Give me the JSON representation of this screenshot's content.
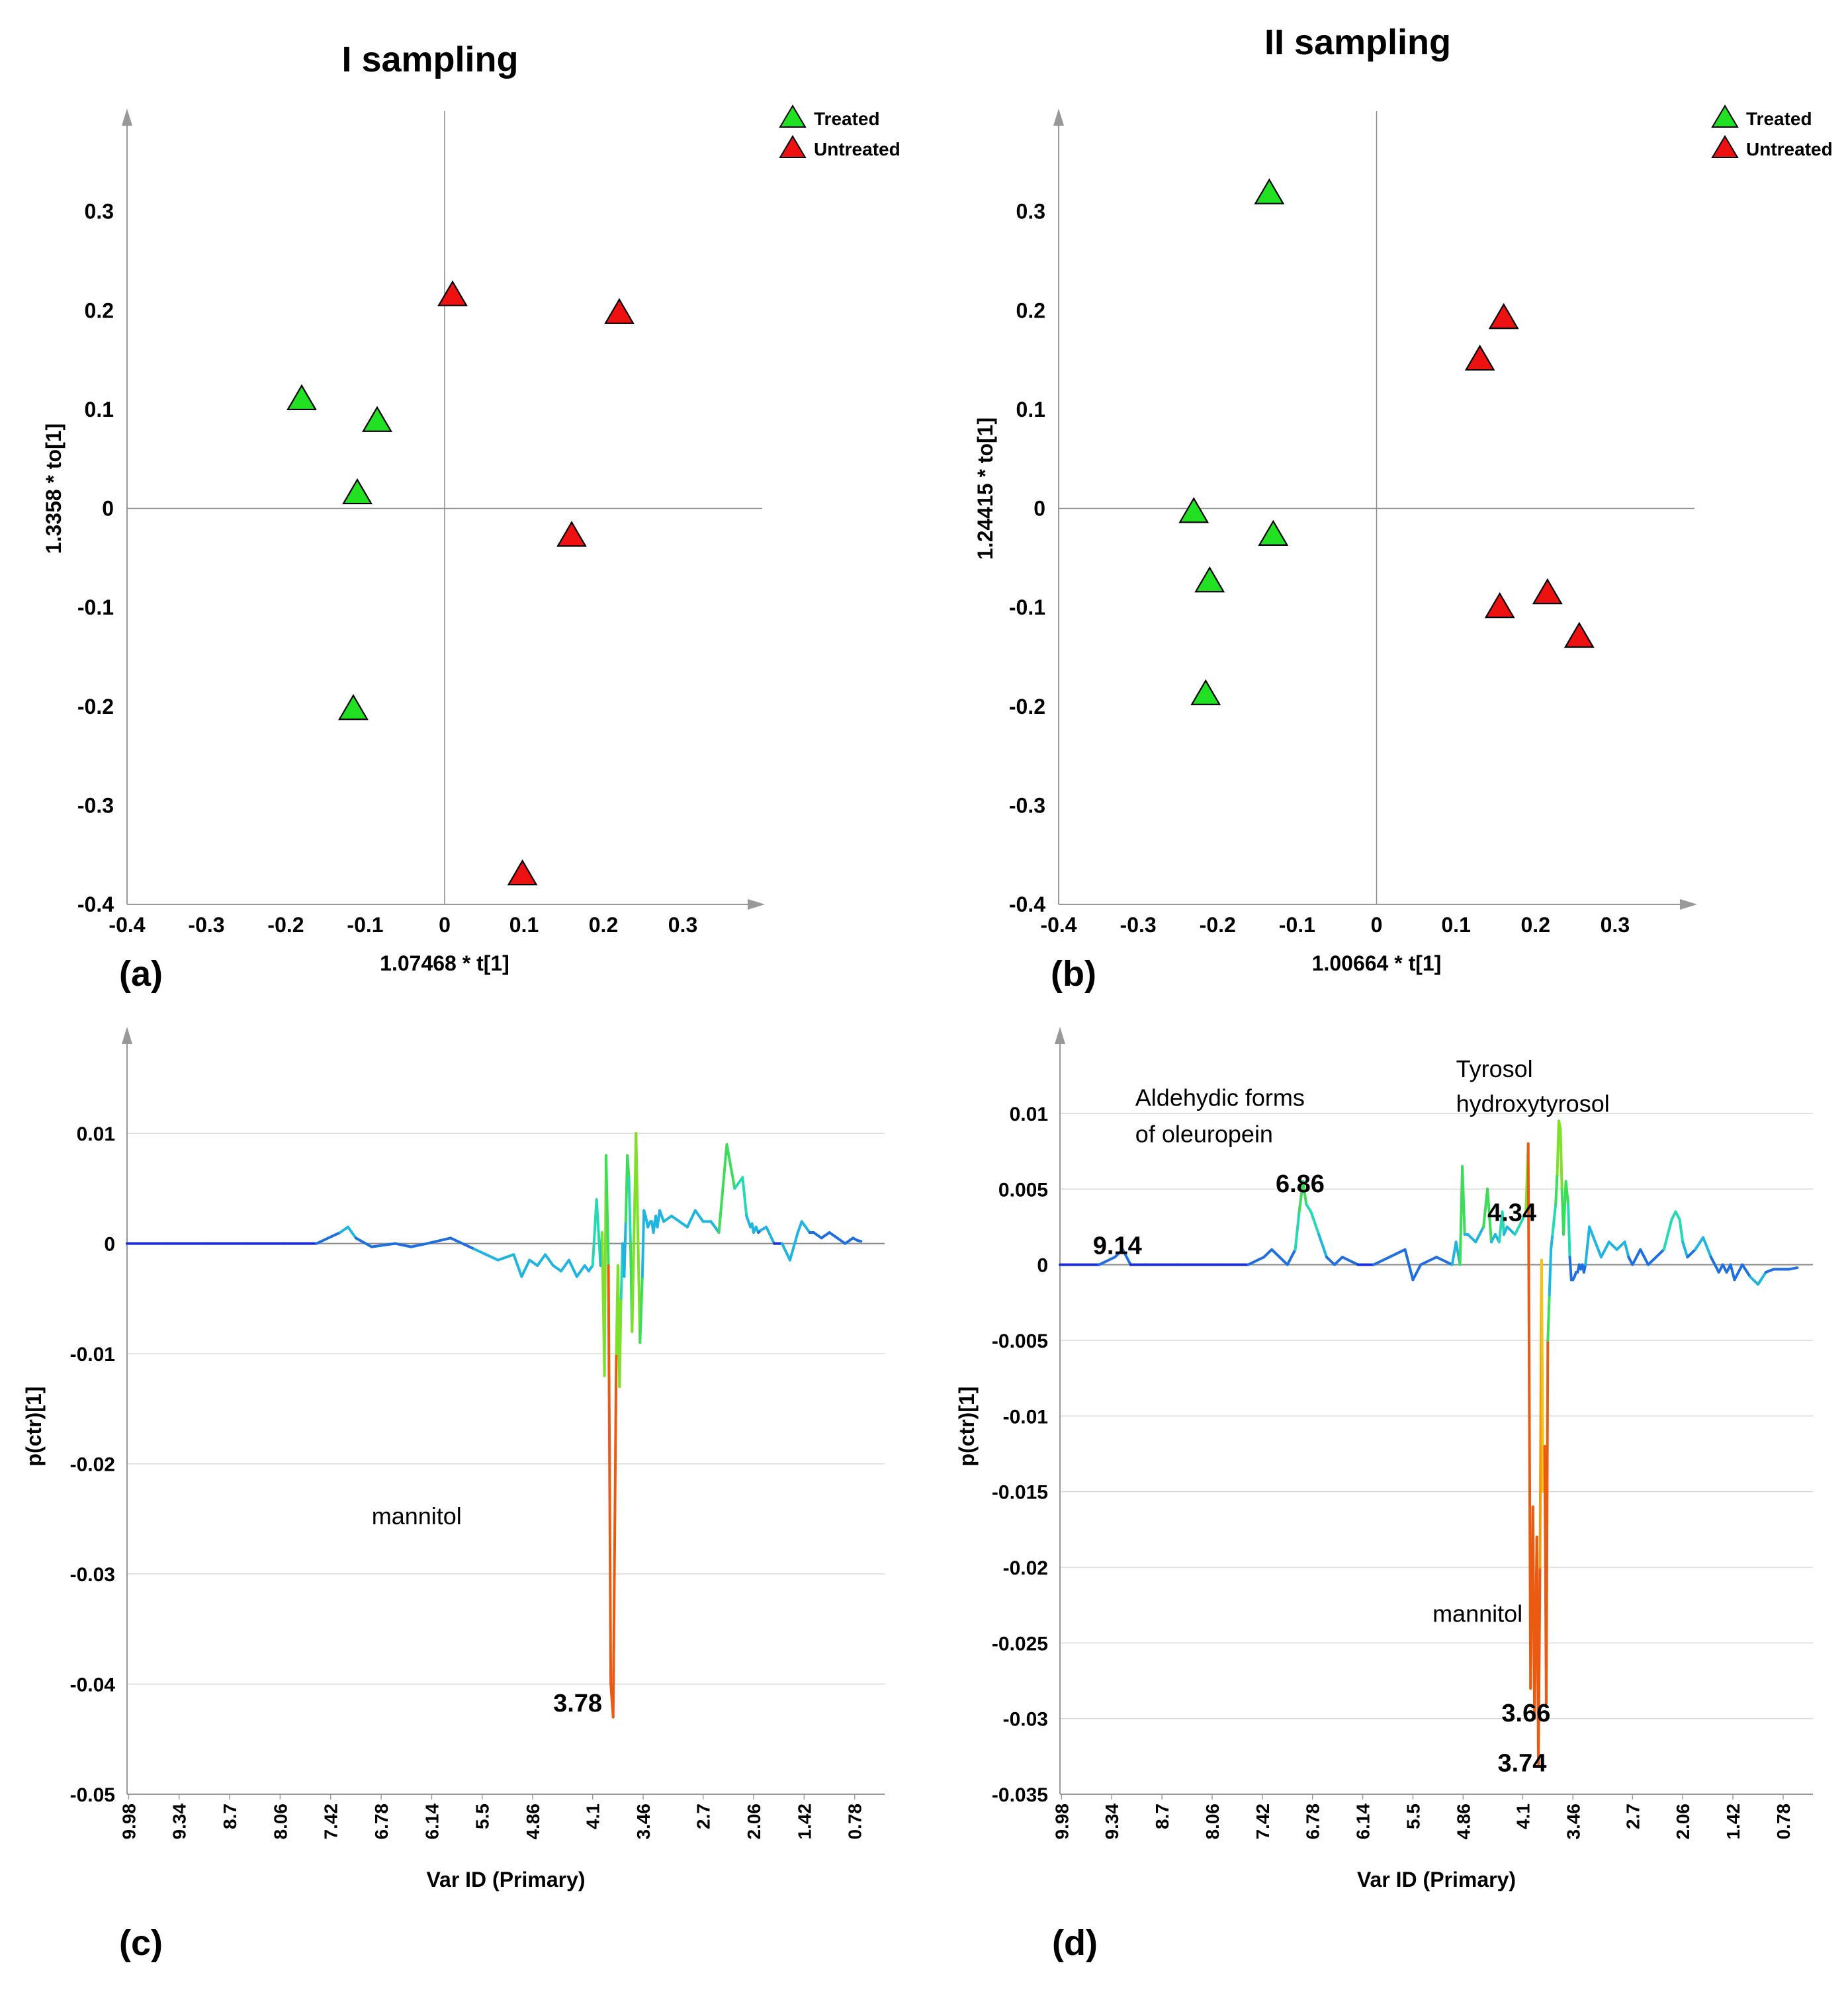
{
  "colors": {
    "treated": "#22e022",
    "untreated": "#ee1111",
    "axis": "#999999",
    "grid": "#d8d8d8",
    "text": "#000000"
  },
  "chart_data": [
    {
      "id": "a",
      "type": "scatter",
      "title": "I sampling",
      "panel_label": "(a)",
      "xlabel": "1.07468 * t[1]",
      "ylabel": "1.3358 * to[1]",
      "xlim": [
        -0.4,
        0.4
      ],
      "ylim": [
        -0.4,
        0.4
      ],
      "xticks": [
        -0.4,
        -0.3,
        -0.2,
        -0.1,
        0,
        0.1,
        0.2,
        0.3
      ],
      "xtick_labels": [
        "-0.4",
        "-0.3",
        "-0.2",
        "-0.1",
        "0",
        "0.1",
        "0.2",
        "0.3"
      ],
      "yticks": [
        0.3,
        0.2,
        0.1,
        0,
        -0.1,
        -0.2,
        -0.3,
        -0.4
      ],
      "ytick_labels": [
        "0.3",
        "0.2",
        "0.1",
        "0",
        "-0.1",
        "-0.2",
        "-0.3",
        "-0.4"
      ],
      "legend": [
        {
          "name": "Treated",
          "color": "#22e022"
        },
        {
          "name": "Untreated",
          "color": "#ee1111"
        }
      ],
      "series": [
        {
          "name": "Treated",
          "color": "#22e022",
          "x": [
            -0.18,
            -0.085,
            -0.11,
            -0.115
          ],
          "y": [
            0.11,
            0.088,
            0.015,
            -0.203
          ]
        },
        {
          "name": "Untreated",
          "color": "#ee1111",
          "x": [
            0.01,
            0.22,
            0.16,
            0.098
          ],
          "y": [
            0.215,
            0.197,
            -0.028,
            -0.37
          ]
        }
      ]
    },
    {
      "id": "b",
      "type": "scatter",
      "title": "II sampling",
      "panel_label": "(b)",
      "xlabel": "1.00664 * t[1]",
      "ylabel": "1.24415 * to[1]",
      "xlim": [
        -0.4,
        0.4
      ],
      "ylim": [
        -0.4,
        0.4
      ],
      "xticks": [
        -0.4,
        -0.3,
        -0.2,
        -0.1,
        0,
        0.1,
        0.2,
        0.3
      ],
      "xtick_labels": [
        "-0.4",
        "-0.3",
        "-0.2",
        "-0.1",
        "0",
        "0.1",
        "0.2",
        "0.3"
      ],
      "yticks": [
        0.3,
        0.2,
        0.1,
        0,
        -0.1,
        -0.2,
        -0.3,
        -0.4
      ],
      "ytick_labels": [
        "0.3",
        "0.2",
        "0.1",
        "0",
        "-0.1",
        "-0.2",
        "-0.3",
        "-0.4"
      ],
      "legend": [
        {
          "name": "Treated",
          "color": "#22e022"
        },
        {
          "name": "Untreated",
          "color": "#ee1111"
        }
      ],
      "series": [
        {
          "name": "Treated",
          "color": "#22e022",
          "x": [
            -0.135,
            -0.23,
            -0.13,
            -0.21,
            -0.215
          ],
          "y": [
            0.318,
            -0.004,
            -0.027,
            -0.074,
            -0.188
          ]
        },
        {
          "name": "Untreated",
          "color": "#ee1111",
          "x": [
            0.16,
            0.13,
            0.215,
            0.155,
            0.255
          ],
          "y": [
            0.192,
            0.15,
            -0.086,
            -0.1,
            -0.13
          ]
        }
      ]
    },
    {
      "id": "c",
      "type": "line",
      "panel_label": "(c)",
      "xlabel": "Var ID (Primary)",
      "ylabel": "p(ctr)[1]",
      "xlim": [
        10.0,
        0.4
      ],
      "ylim": [
        -0.05,
        0.018
      ],
      "xticks": [
        9.98,
        9.34,
        8.7,
        8.06,
        7.42,
        6.78,
        6.14,
        5.5,
        4.86,
        4.1,
        3.46,
        2.7,
        2.06,
        1.42,
        0.78
      ],
      "xtick_labels": [
        "9.98",
        "9.34",
        "8.7",
        "8.06",
        "7.42",
        "6.78",
        "6.14",
        "5.5",
        "4.86",
        "4.1",
        "3.46",
        "2.7",
        "2.06",
        "1.42",
        "0.78"
      ],
      "yticks": [
        0.01,
        0,
        -0.01,
        -0.02,
        -0.03,
        -0.04,
        -0.05
      ],
      "ytick_labels": [
        "0.01",
        "0",
        "-0.01",
        "-0.02",
        "-0.03",
        "-0.04",
        "-0.05"
      ],
      "x": [
        10.0,
        9.5,
        9.0,
        8.5,
        8.0,
        7.6,
        7.3,
        7.2,
        7.1,
        6.9,
        6.6,
        6.4,
        6.2,
        5.9,
        5.6,
        5.3,
        5.1,
        5.0,
        4.9,
        4.8,
        4.7,
        4.6,
        4.5,
        4.4,
        4.3,
        4.2,
        4.15,
        4.1,
        4.05,
        4.0,
        3.98,
        3.95,
        3.93,
        3.9,
        3.87,
        3.84,
        3.8,
        3.78,
        3.76,
        3.74,
        3.72,
        3.7,
        3.68,
        3.66,
        3.64,
        3.62,
        3.6,
        3.55,
        3.5,
        3.47,
        3.45,
        3.43,
        3.4,
        3.37,
        3.35,
        3.33,
        3.3,
        3.28,
        3.25,
        3.2,
        3.1,
        3.0,
        2.9,
        2.8,
        2.7,
        2.6,
        2.5,
        2.4,
        2.3,
        2.2,
        2.15,
        2.1,
        2.08,
        2.06,
        2.03,
        2.0,
        1.97,
        1.9,
        1.8,
        1.7,
        1.6,
        1.5,
        1.45,
        1.4,
        1.35,
        1.3,
        1.2,
        1.1,
        1.0,
        0.9,
        0.8,
        0.75,
        0.7
      ],
      "values": [
        0.0,
        0.0,
        0.0,
        0.0,
        0.0,
        0.0,
        0.001,
        0.0015,
        0.0005,
        -0.0003,
        0.0,
        -0.0003,
        0.0,
        0.0005,
        -0.0005,
        -0.0015,
        -0.001,
        -0.003,
        -0.0015,
        -0.002,
        -0.001,
        -0.002,
        -0.0025,
        -0.0015,
        -0.003,
        -0.002,
        -0.0025,
        -0.002,
        0.004,
        -0.002,
        0.001,
        -0.012,
        0.008,
        -0.002,
        -0.04,
        -0.043,
        -0.01,
        -0.002,
        -0.013,
        -0.005,
        0.0,
        -0.003,
        0.002,
        0.008,
        0.006,
        0.0,
        -0.008,
        0.01,
        -0.009,
        -0.003,
        0.003,
        0.0025,
        0.0015,
        0.002,
        0.002,
        0.001,
        0.0025,
        0.0015,
        0.003,
        0.002,
        0.0025,
        0.002,
        0.0015,
        0.003,
        0.002,
        0.002,
        0.001,
        0.009,
        0.005,
        0.006,
        0.0025,
        0.0015,
        0.0018,
        0.001,
        0.0015,
        0.001,
        0.0012,
        0.0015,
        0.0,
        0.0,
        -0.0015,
        0.001,
        0.002,
        0.0015,
        0.001,
        0.001,
        0.0005,
        0.001,
        0.0005,
        0.0,
        0.0005,
        0.0003,
        0.0002
      ],
      "annotations": [
        {
          "text": "mannitol",
          "x": 6.9,
          "y": -0.0255,
          "bold": false
        },
        {
          "text": "3.78",
          "x": 4.6,
          "y": -0.0425,
          "bold": true
        }
      ]
    },
    {
      "id": "d",
      "type": "line",
      "panel_label": "(d)",
      "xlabel": "Var ID (Primary)",
      "ylabel": "p(ctr)[1]",
      "xlim": [
        10.0,
        0.4
      ],
      "ylim": [
        -0.035,
        0.0145
      ],
      "xticks": [
        9.98,
        9.34,
        8.7,
        8.06,
        7.42,
        6.78,
        6.14,
        5.5,
        4.86,
        4.1,
        3.46,
        2.7,
        2.06,
        1.42,
        0.78
      ],
      "xtick_labels": [
        "9.98",
        "9.34",
        "8.7",
        "8.06",
        "7.42",
        "6.78",
        "6.14",
        "5.5",
        "4.86",
        "4.1",
        "3.46",
        "2.7",
        "2.06",
        "1.42",
        "0.78"
      ],
      "yticks": [
        0.01,
        0.005,
        0,
        -0.005,
        -0.01,
        -0.015,
        -0.02,
        -0.025,
        -0.03,
        -0.035
      ],
      "ytick_labels": [
        "0.01",
        "0.005",
        "0",
        "-0.005",
        "-0.01",
        "-0.015",
        "-0.02",
        "-0.025",
        "-0.03",
        "-0.035"
      ],
      "x": [
        10.0,
        9.5,
        9.3,
        9.2,
        9.1,
        8.9,
        8.5,
        8.0,
        7.6,
        7.4,
        7.3,
        7.2,
        7.1,
        7.0,
        6.95,
        6.9,
        6.86,
        6.8,
        6.7,
        6.6,
        6.5,
        6.4,
        6.2,
        6.0,
        5.8,
        5.6,
        5.5,
        5.4,
        5.2,
        5.0,
        4.95,
        4.9,
        4.87,
        4.84,
        4.8,
        4.7,
        4.6,
        4.55,
        4.5,
        4.45,
        4.4,
        4.36,
        4.34,
        4.3,
        4.2,
        4.1,
        4.06,
        4.03,
        4.0,
        3.97,
        3.95,
        3.92,
        3.9,
        3.88,
        3.86,
        3.84,
        3.82,
        3.8,
        3.78,
        3.76,
        3.74,
        3.72,
        3.7,
        3.68,
        3.66,
        3.64,
        3.62,
        3.6,
        3.58,
        3.55,
        3.52,
        3.5,
        3.48,
        3.46,
        3.44,
        3.42,
        3.4,
        3.38,
        3.36,
        3.34,
        3.32,
        3.3,
        3.25,
        3.1,
        3.0,
        2.9,
        2.8,
        2.75,
        2.7,
        2.6,
        2.5,
        2.4,
        2.3,
        2.2,
        2.15,
        2.1,
        2.06,
        2.0,
        1.9,
        1.8,
        1.7,
        1.6,
        1.55,
        1.5,
        1.45,
        1.4,
        1.3,
        1.2,
        1.1,
        1.0,
        0.9,
        0.8,
        0.7,
        0.6
      ],
      "values": [
        0.0,
        0.0,
        0.0005,
        0.001,
        0.0,
        0.0,
        0.0,
        0.0,
        0.0,
        0.0005,
        0.001,
        0.0005,
        0.0,
        0.001,
        0.0035,
        0.0055,
        0.004,
        0.0035,
        0.002,
        0.0005,
        0.0,
        0.0005,
        0.0,
        0.0,
        0.0005,
        0.001,
        -0.001,
        0.0,
        0.0005,
        0.0,
        0.0015,
        0.0,
        0.0065,
        0.002,
        0.002,
        0.0015,
        0.0025,
        0.005,
        0.0015,
        0.002,
        0.0015,
        0.0035,
        0.002,
        0.0025,
        0.002,
        0.003,
        0.0035,
        0.008,
        -0.028,
        -0.016,
        -0.03,
        -0.018,
        -0.033,
        -0.02,
        0.0003,
        -0.015,
        -0.012,
        -0.029,
        -0.005,
        -0.002,
        0.001,
        0.002,
        0.003,
        0.004,
        0.006,
        0.0095,
        0.009,
        0.005,
        0.002,
        0.0055,
        0.004,
        0.0005,
        -0.001,
        -0.001,
        -0.0008,
        -0.0005,
        -0.0005,
        0.0,
        -0.0003,
        0.0,
        -0.0005,
        0.0,
        0.0025,
        0.0005,
        0.0015,
        0.001,
        0.0015,
        0.0005,
        0.0,
        0.001,
        0.0,
        0.0005,
        0.001,
        0.003,
        0.0035,
        0.003,
        0.0015,
        0.0005,
        0.001,
        0.0018,
        0.0005,
        -0.0005,
        0.0,
        -0.0005,
        0.0,
        -0.001,
        0.0,
        -0.0008,
        -0.0013,
        -0.0005,
        -0.0003,
        -0.0003,
        -0.0003,
        -0.0002
      ],
      "annotations": [
        {
          "text": "Aldehydic forms",
          "x": 9.04,
          "y": 0.0105,
          "bold": false
        },
        {
          "text": "of oleuropein",
          "x": 9.04,
          "y": 0.0081,
          "bold": false
        },
        {
          "text": "Tyrosol",
          "x": 4.95,
          "y": 0.0124,
          "bold": false
        },
        {
          "text": "hydroxytyrosol",
          "x": 4.95,
          "y": 0.0101,
          "bold": false
        },
        {
          "text": "6.86",
          "x": 7.25,
          "y": 0.0048,
          "bold": true
        },
        {
          "text": "4.34",
          "x": 4.55,
          "y": 0.0029,
          "bold": true
        },
        {
          "text": "9.14",
          "x": 9.58,
          "y": 0.0007,
          "bold": true
        },
        {
          "text": "mannitol",
          "x": 5.25,
          "y": -0.0236,
          "bold": false
        },
        {
          "text": "3.66",
          "x": 4.37,
          "y": -0.0302,
          "bold": true
        },
        {
          "text": "3.74",
          "x": 4.42,
          "y": -0.0335,
          "bold": true
        }
      ]
    }
  ]
}
